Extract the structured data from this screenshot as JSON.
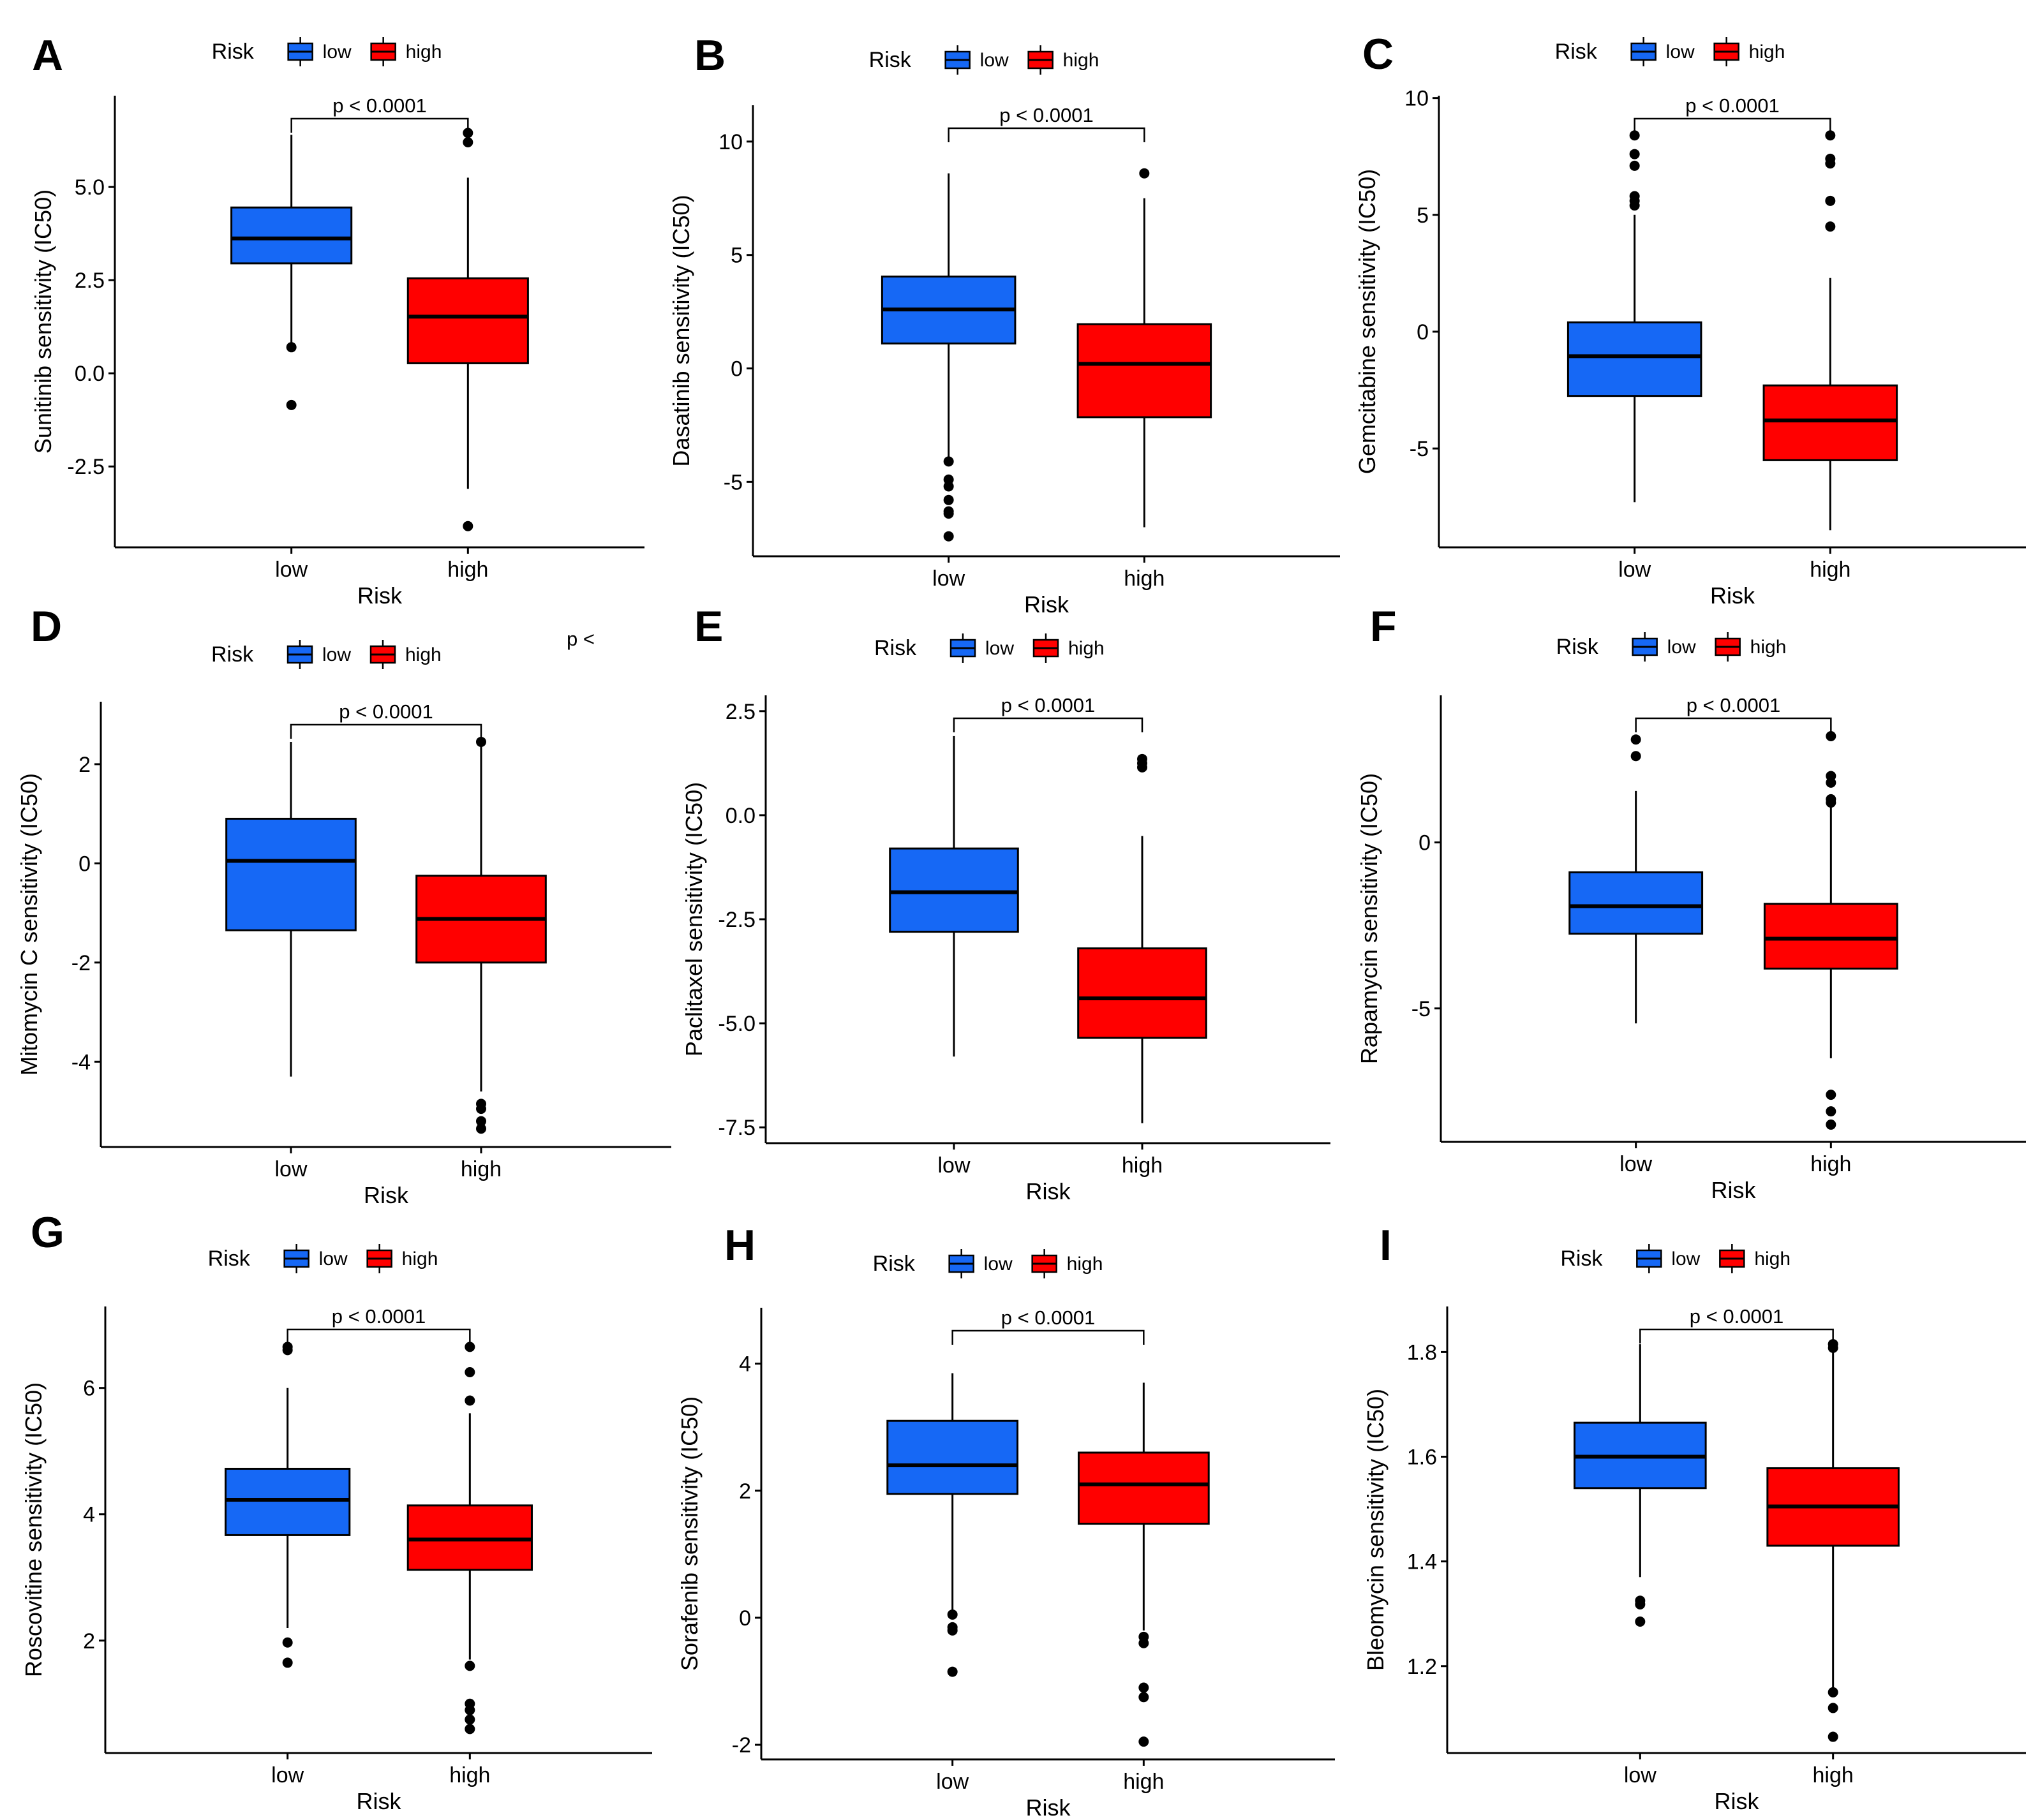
{
  "legend": {
    "title": "Risk",
    "levels": [
      "low",
      "high"
    ]
  },
  "colors": {
    "low": "#1668F5",
    "high": "#FF0000"
  },
  "stat_label": "p < 0.0001",
  "stray_text": "p <",
  "chart_data": [
    {
      "letter": "A",
      "type": "box",
      "title": "",
      "ylabel": "Sunitinib sensitivity (IC50)",
      "xlabel": "Risk",
      "categories": [
        "low",
        "high"
      ],
      "yticks": [
        "5.0",
        "2.5",
        "0.0",
        "-2.5"
      ],
      "ytick_values": [
        5.0,
        2.5,
        0.0,
        -2.5
      ],
      "ylim": [
        -4.67,
        7.45
      ],
      "series": [
        {
          "name": "low",
          "q1": 2.95,
          "median": 3.62,
          "q3": 4.45,
          "whisker_low": 0.75,
          "whisker_high": 6.4,
          "outliers": [
            0.7,
            -0.85
          ]
        },
        {
          "name": "high",
          "q1": 0.27,
          "median": 1.52,
          "q3": 2.55,
          "whisker_low": -3.1,
          "whisker_high": 5.25,
          "outliers": [
            6.45,
            6.2,
            -4.1
          ]
        }
      ],
      "significance": "p < 0.0001"
    },
    {
      "letter": "B",
      "type": "box",
      "title": "",
      "ylabel": "Dasatinib sensitivity (IC50)",
      "xlabel": "Risk",
      "categories": [
        "low",
        "high"
      ],
      "yticks": [
        "10",
        "5",
        "0",
        "-5"
      ],
      "ytick_values": [
        10,
        5,
        0,
        -5
      ],
      "ylim": [
        -8.28,
        11.6
      ],
      "series": [
        {
          "name": "low",
          "q1": 1.1,
          "median": 2.6,
          "q3": 4.05,
          "whisker_low": -3.95,
          "whisker_high": 8.6,
          "outliers": [
            -4.1,
            -4.9,
            -5.2,
            -5.8,
            -6.3,
            -6.4,
            -7.4
          ]
        },
        {
          "name": "high",
          "q1": -2.15,
          "median": 0.2,
          "q3": 1.95,
          "whisker_low": -7.0,
          "whisker_high": 7.5,
          "outliers": [
            8.6
          ]
        }
      ],
      "significance": "p < 0.0001"
    },
    {
      "letter": "C",
      "type": "box",
      "title": "",
      "ylabel": "Gemcitabine sensitivity (IC50)",
      "xlabel": "Risk",
      "categories": [
        "low",
        "high"
      ],
      "yticks": [
        "10",
        "5",
        "0",
        "-5"
      ],
      "ytick_values": [
        10,
        5,
        0,
        -5
      ],
      "ylim": [
        -9.23,
        10.1
      ],
      "series": [
        {
          "name": "low",
          "q1": -2.75,
          "median": -1.05,
          "q3": 0.4,
          "whisker_low": -7.3,
          "whisker_high": 5.0,
          "outliers": [
            8.4,
            7.6,
            7.1,
            5.8,
            5.6,
            5.4
          ]
        },
        {
          "name": "high",
          "q1": -5.5,
          "median": -3.8,
          "q3": -2.3,
          "whisker_low": -8.5,
          "whisker_high": 2.3,
          "outliers": [
            8.4,
            7.4,
            7.2,
            5.6,
            4.5
          ]
        }
      ],
      "significance": "p < 0.0001"
    },
    {
      "letter": "D",
      "type": "box",
      "title": "",
      "ylabel": "Mitomycin C sensitivity (IC50)",
      "xlabel": "Risk",
      "categories": [
        "low",
        "high"
      ],
      "yticks": [
        "2",
        "0",
        "-2",
        "-4"
      ],
      "ytick_values": [
        2,
        0,
        -2,
        -4
      ],
      "ylim": [
        -5.72,
        3.26
      ],
      "series": [
        {
          "name": "low",
          "q1": -1.35,
          "median": 0.05,
          "q3": 0.9,
          "whisker_low": -4.3,
          "whisker_high": 2.45,
          "outliers": []
        },
        {
          "name": "high",
          "q1": -2.0,
          "median": -1.12,
          "q3": -0.25,
          "whisker_low": -4.6,
          "whisker_high": 2.45,
          "outliers": [
            2.45,
            -4.85,
            -4.95,
            -5.2,
            -5.35
          ]
        }
      ],
      "significance": "p < 0.0001"
    },
    {
      "letter": "E",
      "type": "box",
      "title": "",
      "ylabel": "Paclitaxel sensitivity (IC50)",
      "xlabel": "Risk",
      "categories": [
        "low",
        "high"
      ],
      "yticks": [
        "2.5",
        "0.0",
        "-2.5",
        "-5.0",
        "-7.5"
      ],
      "ytick_values": [
        2.5,
        0.0,
        -2.5,
        -5.0,
        -7.5
      ],
      "ylim": [
        -7.88,
        2.88
      ],
      "series": [
        {
          "name": "low",
          "q1": -2.8,
          "median": -1.85,
          "q3": -0.8,
          "whisker_low": -5.8,
          "whisker_high": 1.9,
          "outliers": []
        },
        {
          "name": "high",
          "q1": -5.35,
          "median": -4.4,
          "q3": -3.2,
          "whisker_low": -7.4,
          "whisker_high": -0.5,
          "outliers": [
            1.35,
            1.25,
            1.15
          ]
        }
      ],
      "significance": "p < 0.0001"
    },
    {
      "letter": "F",
      "type": "box",
      "title": "",
      "ylabel": "Rapamycin sensitivity (IC50)",
      "xlabel": "Risk",
      "categories": [
        "low",
        "high"
      ],
      "yticks": [
        "0",
        "-5"
      ],
      "ytick_values": [
        0,
        -5
      ],
      "ylim": [
        -9.02,
        4.43
      ],
      "series": [
        {
          "name": "low",
          "q1": -2.75,
          "median": -1.92,
          "q3": -0.9,
          "whisker_low": -5.45,
          "whisker_high": 1.55,
          "outliers": [
            3.1,
            2.6
          ]
        },
        {
          "name": "high",
          "q1": -3.8,
          "median": -2.9,
          "q3": -1.85,
          "whisker_low": -6.5,
          "whisker_high": 1.1,
          "outliers": [
            3.2,
            2.0,
            1.8,
            1.3,
            1.2,
            -7.6,
            -8.1,
            -8.5
          ]
        }
      ],
      "significance": "p < 0.0001"
    },
    {
      "letter": "G",
      "type": "box",
      "title": "",
      "ylabel": "Roscovitine sensitivity (IC50)",
      "xlabel": "Risk",
      "categories": [
        "low",
        "high"
      ],
      "yticks": [
        "6",
        "4",
        "2"
      ],
      "ytick_values": [
        6,
        4,
        2
      ],
      "ylim": [
        0.22,
        7.29
      ],
      "series": [
        {
          "name": "low",
          "q1": 3.67,
          "median": 4.23,
          "q3": 4.72,
          "whisker_low": 2.2,
          "whisker_high": 6.0,
          "outliers": [
            6.65,
            6.6,
            1.97,
            1.65
          ]
        },
        {
          "name": "high",
          "q1": 3.12,
          "median": 3.6,
          "q3": 4.14,
          "whisker_low": 1.7,
          "whisker_high": 5.6,
          "outliers": [
            6.65,
            6.25,
            5.8,
            1.6,
            1.0,
            0.9,
            0.75,
            0.6
          ]
        }
      ],
      "significance": "p < 0.0001"
    },
    {
      "letter": "H",
      "type": "box",
      "title": "",
      "ylabel": "Sorafenib sensitivity (IC50)",
      "xlabel": "Risk",
      "categories": [
        "low",
        "high"
      ],
      "yticks": [
        "4",
        "2",
        "0",
        "-2"
      ],
      "ytick_values": [
        4,
        2,
        0,
        -2
      ],
      "ylim": [
        -2.23,
        4.88
      ],
      "series": [
        {
          "name": "low",
          "q1": 1.95,
          "median": 2.4,
          "q3": 3.1,
          "whisker_low": 0.1,
          "whisker_high": 3.85,
          "outliers": [
            0.05,
            -0.15,
            -0.2,
            -0.85
          ]
        },
        {
          "name": "high",
          "q1": 1.48,
          "median": 2.1,
          "q3": 2.6,
          "whisker_low": -0.2,
          "whisker_high": 3.7,
          "outliers": [
            -0.3,
            -0.4,
            -1.1,
            -1.25,
            -1.95
          ]
        }
      ],
      "significance": "p < 0.0001"
    },
    {
      "letter": "I",
      "type": "box",
      "title": "",
      "ylabel": "Bleomycin sensitivity (IC50)",
      "xlabel": "Risk",
      "categories": [
        "low",
        "high"
      ],
      "yticks": [
        "1.8",
        "1.6",
        "1.4",
        "1.2"
      ],
      "ytick_values": [
        1.8,
        1.6,
        1.4,
        1.2
      ],
      "ylim": [
        1.034,
        1.887
      ],
      "series": [
        {
          "name": "low",
          "q1": 1.54,
          "median": 1.6,
          "q3": 1.665,
          "whisker_low": 1.37,
          "whisker_high": 1.815,
          "outliers": [
            1.325,
            1.318,
            1.285
          ]
        },
        {
          "name": "high",
          "q1": 1.43,
          "median": 1.505,
          "q3": 1.578,
          "whisker_low": 1.155,
          "whisker_high": 1.81,
          "outliers": [
            1.815,
            1.808,
            1.15,
            1.12,
            1.065
          ]
        }
      ],
      "significance": "p < 0.0001"
    }
  ]
}
